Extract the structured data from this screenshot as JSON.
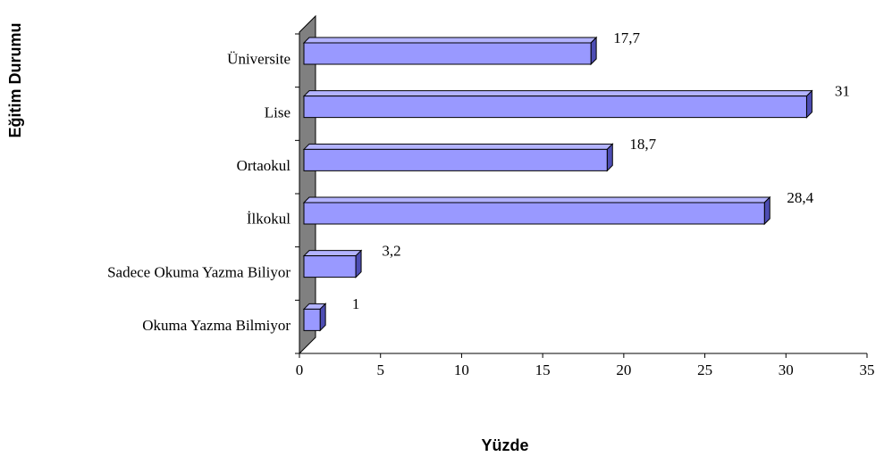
{
  "chart_data": {
    "type": "bar",
    "orientation": "horizontal",
    "x_label": "Yüzde",
    "y_label": "Eğitim Durumu",
    "categories": [
      "Üniversite",
      "Lise",
      "Ortaokul",
      "İlkokul",
      "Sadece Okuma Yazma Biliyor",
      "Okuma Yazma Bilmiyor"
    ],
    "values": [
      17.7,
      31,
      18.7,
      28.4,
      3.2,
      1
    ],
    "value_labels": [
      "17,7",
      "31",
      "18,7",
      "28,4",
      "3,2",
      "1"
    ],
    "color": "#9999ff",
    "xlim": [
      0,
      35
    ],
    "xticks": [
      0,
      5,
      10,
      15,
      20,
      25,
      30,
      35
    ]
  }
}
